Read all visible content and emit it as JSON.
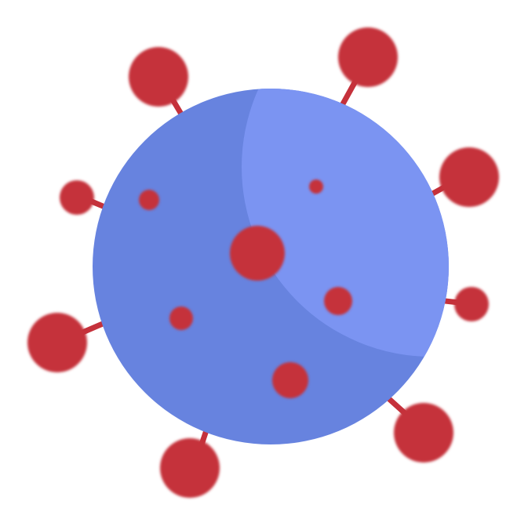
{
  "illustration": {
    "subject": "virus-icon",
    "colors": {
      "background": "#ffffff",
      "body_shadow": "#6783df",
      "body_highlight": "#7b94f2",
      "spike": "#c5313b",
      "spot": "#c5313b"
    }
  }
}
